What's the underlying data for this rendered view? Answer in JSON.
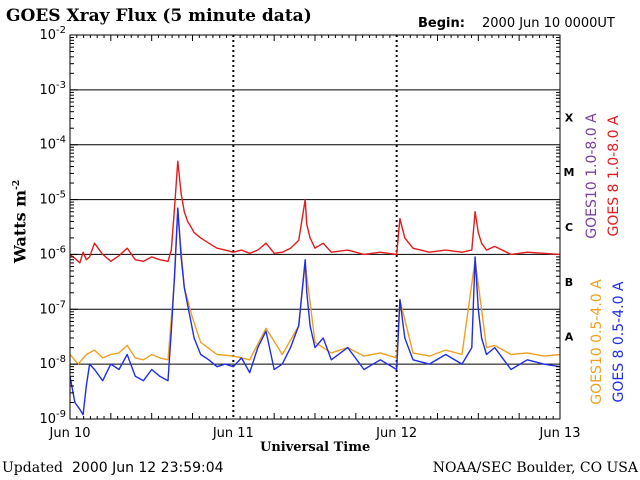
{
  "header": {
    "title": "GOES Xray Flux (5 minute data)",
    "begin_label": "Begin:",
    "begin_value": "2000 Jun 10 0000UT"
  },
  "footer": {
    "updated_label": "Updated",
    "updated_value": "2000 Jun 12 23:59:04",
    "credit": "NOAA/SEC Boulder, CO USA"
  },
  "colors": {
    "goes8_long": "#e41a1c",
    "goes10_long": "#7b3fa0",
    "goes8_short": "#1f2de8",
    "goes10_short": "#f0a020",
    "grid": "#000000"
  },
  "chart_data": {
    "type": "line",
    "title": "GOES Xray Flux (5 minute data)",
    "xlabel": "Universal Time",
    "ylabel": "Watts m",
    "ylabel_sup": "-2",
    "x_unit": "days since 2000 Jun 10 00:00 UT",
    "xlim": [
      0,
      3
    ],
    "y_scale": "log",
    "ylim": [
      1e-09,
      0.01
    ],
    "x_ticks": [
      {
        "x": 0,
        "label": "Jun 10"
      },
      {
        "x": 1,
        "label": "Jun 11"
      },
      {
        "x": 2,
        "label": "Jun 12"
      },
      {
        "x": 3,
        "label": "Jun 13"
      }
    ],
    "y_ticks": [
      {
        "y": 1e-09,
        "base": "10",
        "exp": "-9"
      },
      {
        "y": 1e-08,
        "base": "10",
        "exp": "-8"
      },
      {
        "y": 1e-07,
        "base": "10",
        "exp": "-7"
      },
      {
        "y": 1e-06,
        "base": "10",
        "exp": "-6"
      },
      {
        "y": 1e-05,
        "base": "10",
        "exp": "-5"
      },
      {
        "y": 0.0001,
        "base": "10",
        "exp": "-4"
      },
      {
        "y": 0.001,
        "base": "10",
        "exp": "-3"
      },
      {
        "y": 0.01,
        "base": "10",
        "exp": "-2"
      }
    ],
    "flare_classes": [
      {
        "label": "A",
        "y": 3.16e-08
      },
      {
        "label": "B",
        "y": 3.16e-07
      },
      {
        "label": "C",
        "y": 3.16e-06
      },
      {
        "label": "M",
        "y": 3.16e-05
      },
      {
        "label": "X",
        "y": 0.000316
      }
    ],
    "grid": true,
    "legend_placement": "right",
    "legend": [
      {
        "name": "GOES10 1.0-8.0 A",
        "color": "#7b3fa0"
      },
      {
        "name": "GOES 8 1.0-8.0 A",
        "color": "#e41a1c"
      },
      {
        "name": "GOES10 0.5-4.0 A",
        "color": "#f0a020"
      },
      {
        "name": "GOES 8 0.5-4.0 A",
        "color": "#1f2de8"
      }
    ],
    "series": [
      {
        "name": "GOES 8 1.0-8.0 A",
        "color": "#e41a1c",
        "x": [
          0,
          0.03,
          0.06,
          0.08,
          0.1,
          0.12,
          0.15,
          0.2,
          0.25,
          0.3,
          0.35,
          0.4,
          0.45,
          0.5,
          0.55,
          0.6,
          0.62,
          0.64,
          0.66,
          0.68,
          0.7,
          0.72,
          0.74,
          0.76,
          0.8,
          0.85,
          0.9,
          0.95,
          1,
          1.05,
          1.1,
          1.15,
          1.2,
          1.25,
          1.3,
          1.35,
          1.4,
          1.44,
          1.45,
          1.47,
          1.5,
          1.55,
          1.6,
          1.7,
          1.8,
          1.9,
          2,
          2.02,
          2.05,
          2.1,
          2.2,
          2.3,
          2.4,
          2.46,
          2.48,
          2.5,
          2.52,
          2.55,
          2.6,
          2.7,
          2.8,
          2.9,
          3
        ],
        "values": [
          1e-06,
          8.5e-07,
          7e-07,
          1.1e-06,
          8e-07,
          9e-07,
          1.6e-06,
          1e-06,
          7.5e-07,
          9.5e-07,
          1.3e-06,
          8e-07,
          7.5e-07,
          9e-07,
          8e-07,
          7.5e-07,
          1.2e-06,
          7e-06,
          5e-05,
          1.3e-05,
          6e-06,
          4e-06,
          3.2e-06,
          2.5e-06,
          2e-06,
          1.6e-06,
          1.3e-06,
          1.2e-06,
          1.1e-06,
          1.2e-06,
          1.05e-06,
          1.2e-06,
          1.6e-06,
          1.05e-06,
          1.1e-06,
          1.3e-06,
          1.8e-06,
          1e-05,
          3.5e-06,
          2e-06,
          1.3e-06,
          1.6e-06,
          1.1e-06,
          1.2e-06,
          1e-06,
          1.1e-06,
          1e-06,
          4.5e-06,
          2e-06,
          1.3e-06,
          1.1e-06,
          1.2e-06,
          1.1e-06,
          1.2e-06,
          6e-06,
          2.5e-06,
          1.6e-06,
          1.2e-06,
          1.4e-06,
          1e-06,
          1.1e-06,
          1.05e-06,
          1e-06
        ]
      },
      {
        "name": "GOES 8 0.5-4.0 A",
        "color": "#1f2de8",
        "x": [
          0,
          0.03,
          0.06,
          0.08,
          0.1,
          0.12,
          0.15,
          0.2,
          0.25,
          0.3,
          0.35,
          0.4,
          0.45,
          0.5,
          0.55,
          0.6,
          0.62,
          0.64,
          0.66,
          0.68,
          0.7,
          0.72,
          0.74,
          0.76,
          0.8,
          0.85,
          0.9,
          0.95,
          1,
          1.05,
          1.1,
          1.15,
          1.2,
          1.25,
          1.3,
          1.35,
          1.4,
          1.44,
          1.45,
          1.47,
          1.5,
          1.55,
          1.6,
          1.7,
          1.8,
          1.9,
          2,
          2.02,
          2.05,
          2.1,
          2.2,
          2.3,
          2.4,
          2.46,
          2.48,
          2.5,
          2.52,
          2.55,
          2.6,
          2.7,
          2.8,
          2.9,
          3
        ],
        "values": [
          6e-09,
          2e-09,
          1.5e-09,
          1.2e-09,
          4e-09,
          1e-08,
          8e-09,
          5e-09,
          1e-08,
          8e-09,
          1.5e-08,
          6e-09,
          5e-09,
          8e-09,
          6e-09,
          5e-09,
          4e-08,
          4e-07,
          7e-06,
          9e-07,
          2.5e-07,
          1.2e-07,
          6e-08,
          3e-08,
          1.5e-08,
          1.2e-08,
          9e-09,
          1e-08,
          9e-09,
          1.3e-08,
          7e-09,
          2e-08,
          4e-08,
          8e-09,
          1e-08,
          2e-08,
          5e-08,
          8e-07,
          2e-07,
          5e-08,
          2e-08,
          3e-08,
          1.2e-08,
          2e-08,
          8e-09,
          1.2e-08,
          8e-09,
          1.5e-07,
          3e-08,
          1.2e-08,
          1e-08,
          1.5e-08,
          1e-08,
          2e-08,
          9e-07,
          1e-07,
          3e-08,
          1.5e-08,
          2e-08,
          8e-09,
          1.2e-08,
          1e-08,
          9e-09
        ]
      },
      {
        "name": "GOES10 0.5-4.0 A",
        "color": "#f0a020",
        "x": [
          0,
          0.05,
          0.1,
          0.15,
          0.2,
          0.25,
          0.3,
          0.35,
          0.4,
          0.45,
          0.5,
          0.55,
          0.6,
          0.64,
          0.66,
          0.7,
          0.75,
          0.8,
          0.9,
          1,
          1.1,
          1.2,
          1.3,
          1.4,
          1.44,
          1.5,
          1.6,
          1.7,
          1.8,
          1.9,
          2,
          2.02,
          2.1,
          2.2,
          2.3,
          2.4,
          2.48,
          2.55,
          2.6,
          2.7,
          2.8,
          2.9,
          3
        ],
        "values": [
          1.5e-08,
          1e-08,
          1.5e-08,
          1.8e-08,
          1.3e-08,
          1.5e-08,
          1.6e-08,
          2.2e-08,
          1.3e-08,
          1.2e-08,
          1.5e-08,
          1.3e-08,
          1.2e-08,
          3.5e-07,
          6e-06,
          2.5e-07,
          7e-08,
          2.5e-08,
          1.5e-08,
          1.4e-08,
          1.2e-08,
          4.5e-08,
          1.5e-08,
          5e-08,
          7e-07,
          2.5e-08,
          1.6e-08,
          2e-08,
          1.4e-08,
          1.6e-08,
          1.3e-08,
          1.5e-07,
          1.6e-08,
          1.4e-08,
          1.8e-08,
          1.5e-08,
          8e-07,
          2e-08,
          2.2e-08,
          1.5e-08,
          1.6e-08,
          1.4e-08,
          1.5e-08
        ]
      }
    ]
  }
}
